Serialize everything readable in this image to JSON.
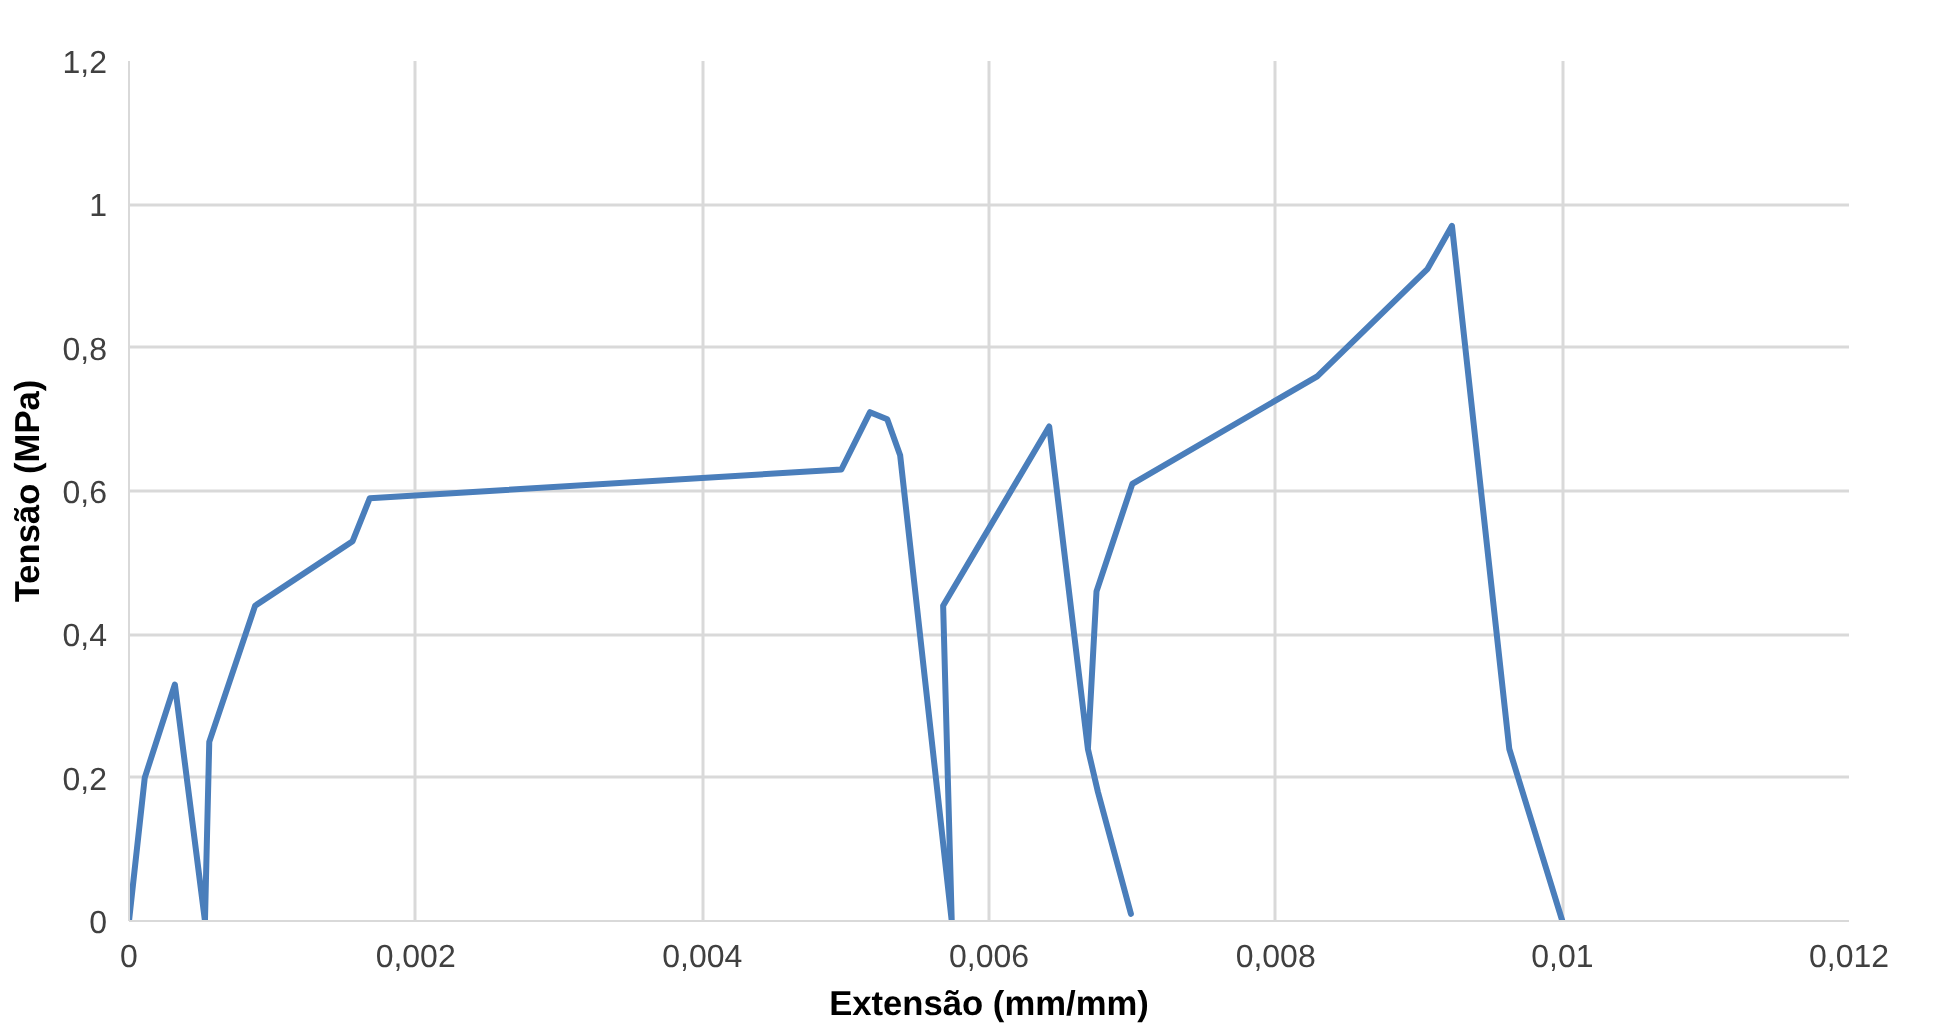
{
  "chart_data": {
    "type": "line",
    "xlabel": "Extensão (mm/mm)",
    "ylabel": "Tensão (MPa)",
    "series": [
      {
        "color": "#4a7ebb",
        "x": [
          0,
          0.00011,
          0.00032,
          0.00053,
          0.00056,
          0.00088,
          0.00156,
          0.00168,
          0.00497,
          0.00517,
          0.00529,
          0.00538,
          0.00574,
          0.00568,
          0.00642,
          0.00669,
          0.00676,
          0.00699,
          0.00676,
          0.00669,
          0.00675,
          0.007,
          0.00829,
          0.00906,
          0.00923,
          0.00963,
          0.01
        ],
        "values": [
          0,
          0.2,
          0.33,
          0,
          0.25,
          0.44,
          0.53,
          0.59,
          0.63,
          0.71,
          0.7,
          0.65,
          0,
          0.44,
          0.69,
          0.24,
          0.18,
          0.01,
          0.18,
          0.24,
          0.46,
          0.61,
          0.76,
          0.91,
          0.97,
          0.24,
          0
        ]
      }
    ],
    "xlim": [
      0,
      0.012
    ],
    "xticks": [
      0,
      {
        "value": 0.002,
        "label": "0,002"
      },
      {
        "value": 0.004,
        "label": "0,004"
      },
      {
        "value": 0.006,
        "label": "0,006"
      },
      {
        "value": 0.008,
        "label": "0,008"
      },
      {
        "value": 0.01,
        "label": "0,01"
      },
      {
        "value": 0.012,
        "label": "0,012"
      }
    ],
    "ylim": [
      0,
      1.2
    ],
    "yticks": [
      0,
      {
        "value": 0.2,
        "label": "0,2"
      },
      {
        "value": 0.4,
        "label": "0,4"
      },
      {
        "value": 0.6,
        "label": "0,6"
      },
      {
        "value": 0.8,
        "label": "0,8"
      },
      1,
      {
        "value": 1.2,
        "label": "1,2"
      }
    ],
    "grid": true,
    "marker": "none",
    "line_style": "solid"
  }
}
